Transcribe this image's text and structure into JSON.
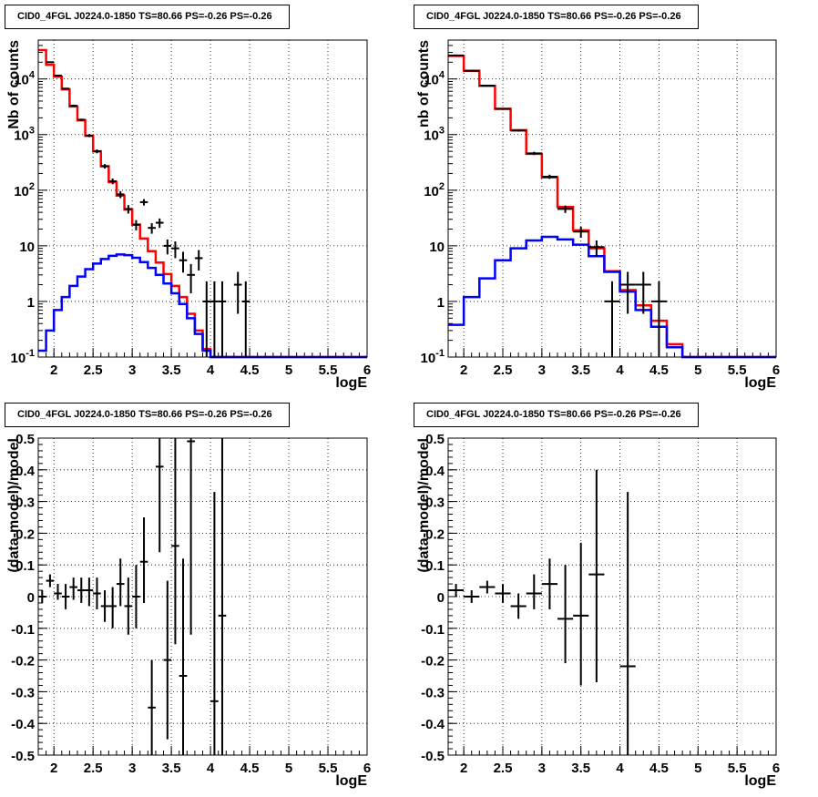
{
  "chart_data": [
    {
      "type": "line",
      "panel": "top-left",
      "title": "CID0_4FGL J0224.0-1850 TS=80.66 PS=-0.26 PS=-0.26",
      "xlabel": "logE",
      "ylabel": "Nb of counts",
      "xlim": [
        1.8,
        6.0
      ],
      "ylim": [
        0.1,
        50000
      ],
      "yscale": "log",
      "grid": true,
      "x_ticks": [
        "2",
        "2.5",
        "3",
        "3.5",
        "4",
        "4.5",
        "5",
        "5.5",
        "6"
      ],
      "y_ticks": [
        "10^-1",
        "1",
        "10",
        "10^2",
        "10^3",
        "10^4"
      ],
      "bin_edges": [
        1.8,
        1.9,
        2.0,
        2.1,
        2.2,
        2.3,
        2.4,
        2.5,
        2.6,
        2.7,
        2.8,
        2.9,
        3.0,
        3.1,
        3.2,
        3.3,
        3.4,
        3.5,
        3.6,
        3.7,
        3.8,
        3.9,
        4.0,
        4.1,
        4.2,
        4.3,
        4.4,
        4.5,
        4.6,
        4.7,
        4.8,
        4.9,
        5.0,
        5.1,
        5.2,
        5.3,
        5.4,
        5.5,
        5.6,
        5.7,
        5.8,
        5.9,
        6.0
      ],
      "series": [
        {
          "name": "",
          "color": "#ff0000",
          "values": [
            33000,
            18000,
            11000,
            6500,
            3200,
            1800,
            950,
            500,
            270,
            140,
            80,
            45,
            24,
            13.5,
            8,
            5,
            3.1,
            1.9,
            1.2,
            0.6,
            0.3,
            0.14,
            0.1,
            0.1,
            0.1,
            0.1,
            0.1,
            0.1,
            0.1,
            0.1,
            0.1,
            0.1,
            0.1,
            0.1,
            0.1,
            0.1,
            0.1,
            0.1,
            0.1,
            0.1,
            0.1,
            0.1
          ]
        },
        {
          "name": "",
          "color": "#0000ff",
          "values": [
            0.13,
            0.3,
            0.7,
            1.2,
            1.9,
            2.8,
            3.8,
            4.8,
            5.8,
            6.6,
            7,
            6.8,
            6.1,
            5.1,
            4,
            3,
            2.1,
            1.4,
            0.9,
            0.5,
            0.26,
            0.13,
            0.1,
            0.1,
            0.1,
            0.1,
            0.1,
            0.1,
            0.1,
            0.1,
            0.1,
            0.1,
            0.1,
            0.1,
            0.1,
            0.1,
            0.1,
            0.1,
            0.1,
            0.1,
            0.1,
            0.1
          ]
        }
      ],
      "points": [
        {
          "x": 1.95,
          "y": 20000,
          "ylo": 19500,
          "yhi": 20500
        },
        {
          "x": 2.05,
          "y": 11500,
          "ylo": 11200,
          "yhi": 11800
        },
        {
          "x": 2.15,
          "y": 6700,
          "ylo": 6500,
          "yhi": 6900
        },
        {
          "x": 2.25,
          "y": 3300,
          "ylo": 3150,
          "yhi": 3450
        },
        {
          "x": 2.35,
          "y": 1850,
          "ylo": 1770,
          "yhi": 1930
        },
        {
          "x": 2.45,
          "y": 960,
          "ylo": 900,
          "yhi": 1020
        },
        {
          "x": 2.55,
          "y": 500,
          "ylo": 460,
          "yhi": 540
        },
        {
          "x": 2.65,
          "y": 270,
          "ylo": 245,
          "yhi": 295
        },
        {
          "x": 2.75,
          "y": 145,
          "ylo": 128,
          "yhi": 162
        },
        {
          "x": 2.85,
          "y": 84,
          "ylo": 72,
          "yhi": 96
        },
        {
          "x": 2.95,
          "y": 46,
          "ylo": 38,
          "yhi": 54
        },
        {
          "x": 3.05,
          "y": 24,
          "ylo": 19,
          "yhi": 29
        },
        {
          "x": 3.15,
          "y": 61,
          "ylo": 53,
          "yhi": 69
        },
        {
          "x": 3.25,
          "y": 21,
          "ylo": 16.5,
          "yhi": 25.5
        },
        {
          "x": 3.35,
          "y": 26,
          "ylo": 21,
          "yhi": 31
        },
        {
          "x": 3.45,
          "y": 10,
          "ylo": 7,
          "yhi": 13
        },
        {
          "x": 3.55,
          "y": 9,
          "ylo": 6,
          "yhi": 12
        },
        {
          "x": 3.65,
          "y": 5.5,
          "ylo": 3.3,
          "yhi": 7.8
        },
        {
          "x": 3.75,
          "y": 3,
          "ylo": 1.4,
          "yhi": 4.7
        },
        {
          "x": 3.85,
          "y": 6,
          "ylo": 3.6,
          "yhi": 8.4
        },
        {
          "x": 3.95,
          "y": 1,
          "ylo": 0.1,
          "yhi": 2.3
        },
        {
          "x": 4.05,
          "y": 1,
          "ylo": 0.1,
          "yhi": 2.3
        },
        {
          "x": 4.15,
          "y": 1,
          "ylo": 0.1,
          "yhi": 2.3
        },
        {
          "x": 4.35,
          "y": 2,
          "ylo": 0.6,
          "yhi": 3.4
        },
        {
          "x": 4.45,
          "y": 1,
          "ylo": 0.1,
          "yhi": 2.3
        }
      ]
    },
    {
      "type": "line",
      "panel": "top-right",
      "title": "CID0_4FGL J0224.0-1850 TS=80.66 PS=-0.26 PS=-0.26",
      "xlabel": "logE",
      "ylabel": "nb of counts",
      "xlim": [
        1.8,
        6.0
      ],
      "ylim": [
        0.1,
        50000
      ],
      "yscale": "log",
      "grid": true,
      "x_ticks": [
        "2",
        "2.5",
        "3",
        "3.5",
        "4",
        "4.5",
        "5",
        "5.5",
        "6"
      ],
      "y_ticks": [
        "10^-1",
        "1",
        "10",
        "10^2",
        "10^3",
        "10^4"
      ],
      "bin_edges": [
        1.8,
        2.0,
        2.2,
        2.4,
        2.6,
        2.8,
        3.0,
        3.2,
        3.4,
        3.6,
        3.8,
        4.0,
        4.2,
        4.4,
        4.6,
        4.8,
        5.0,
        5.2,
        5.4,
        5.6,
        5.8,
        6.0
      ],
      "series": [
        {
          "name": "",
          "color": "#ff0000",
          "values": [
            26000,
            14000,
            7500,
            2900,
            1200,
            450,
            170,
            50,
            19,
            9,
            3.5,
            1.6,
            0.85,
            0.45,
            0.17,
            0.1,
            0.1,
            0.1,
            0.1,
            0.1,
            0.1
          ]
        },
        {
          "name": "",
          "color": "#0000ff",
          "values": [
            0.38,
            1.2,
            2.6,
            5.5,
            9,
            12.5,
            14.5,
            13,
            10.5,
            6.5,
            3.4,
            1.5,
            0.7,
            0.35,
            0.15,
            0.1,
            0.1,
            0.1,
            0.1,
            0.1,
            0.1
          ]
        }
      ],
      "points": [
        {
          "x": 1.9,
          "y": 26500,
          "ylo": 26200,
          "yhi": 26800
        },
        {
          "x": 2.1,
          "y": 14100,
          "ylo": 13900,
          "yhi": 14300
        },
        {
          "x": 2.3,
          "y": 7600,
          "ylo": 7450,
          "yhi": 7750
        },
        {
          "x": 2.5,
          "y": 2900,
          "ylo": 2800,
          "yhi": 3000
        },
        {
          "x": 2.7,
          "y": 1180,
          "ylo": 1130,
          "yhi": 1230
        },
        {
          "x": 2.9,
          "y": 460,
          "ylo": 430,
          "yhi": 490
        },
        {
          "x": 3.1,
          "y": 175,
          "ylo": 160,
          "yhi": 190
        },
        {
          "x": 3.3,
          "y": 46,
          "ylo": 39,
          "yhi": 53
        },
        {
          "x": 3.5,
          "y": 18,
          "ylo": 14,
          "yhi": 22
        },
        {
          "x": 3.7,
          "y": 9.5,
          "ylo": 6.5,
          "yhi": 12.5
        },
        {
          "x": 3.9,
          "y": 1,
          "ylo": 0.1,
          "yhi": 2.3
        },
        {
          "x": 4.1,
          "y": 2,
          "ylo": 0.6,
          "yhi": 3.4
        },
        {
          "x": 4.3,
          "y": 2,
          "ylo": 0.6,
          "yhi": 3.4
        },
        {
          "x": 4.5,
          "y": 1,
          "ylo": 0.1,
          "yhi": 2.3
        }
      ]
    },
    {
      "type": "scatter",
      "panel": "bottom-left",
      "title": "CID0_4FGL J0224.0-1850 TS=80.66 PS=-0.26 PS=-0.26",
      "xlabel": "logE",
      "ylabel": "(data-model)/model",
      "xlim": [
        1.8,
        6.0
      ],
      "ylim": [
        -0.5,
        0.5
      ],
      "grid": true,
      "x_ticks": [
        "2",
        "2.5",
        "3",
        "3.5",
        "4",
        "4.5",
        "5",
        "5.5",
        "6"
      ],
      "y_ticks": [
        "-0.5",
        "-0.4",
        "-0.3",
        "-0.2",
        "-0.1",
        "0",
        "0.1",
        "0.2",
        "0.3",
        "0.4",
        "0.5"
      ],
      "points": [
        {
          "x": 1.85,
          "y": 0.0,
          "ylo": -0.02,
          "yhi": 0.02,
          "dx": 0.05
        },
        {
          "x": 1.95,
          "y": 0.05,
          "ylo": 0.03,
          "yhi": 0.07,
          "dx": 0.05
        },
        {
          "x": 2.05,
          "y": 0.01,
          "ylo": -0.01,
          "yhi": 0.04,
          "dx": 0.05
        },
        {
          "x": 2.15,
          "y": 0.0,
          "ylo": -0.04,
          "yhi": 0.04,
          "dx": 0.05
        },
        {
          "x": 2.25,
          "y": 0.03,
          "ylo": -0.01,
          "yhi": 0.06,
          "dx": 0.05
        },
        {
          "x": 2.35,
          "y": 0.02,
          "ylo": -0.02,
          "yhi": 0.06,
          "dx": 0.05
        },
        {
          "x": 2.45,
          "y": 0.02,
          "ylo": -0.03,
          "yhi": 0.06,
          "dx": 0.05
        },
        {
          "x": 2.55,
          "y": 0.01,
          "ylo": -0.04,
          "yhi": 0.06,
          "dx": 0.05
        },
        {
          "x": 2.65,
          "y": -0.03,
          "ylo": -0.08,
          "yhi": 0.02,
          "dx": 0.05
        },
        {
          "x": 2.75,
          "y": -0.03,
          "ylo": -0.1,
          "yhi": 0.03,
          "dx": 0.05
        },
        {
          "x": 2.85,
          "y": 0.04,
          "ylo": -0.03,
          "yhi": 0.12,
          "dx": 0.05
        },
        {
          "x": 2.95,
          "y": -0.03,
          "ylo": -0.12,
          "yhi": 0.06,
          "dx": 0.05
        },
        {
          "x": 3.05,
          "y": 0.0,
          "ylo": -0.1,
          "yhi": 0.1,
          "dx": 0.05
        },
        {
          "x": 3.15,
          "y": 0.11,
          "ylo": -0.02,
          "yhi": 0.25,
          "dx": 0.05
        },
        {
          "x": 3.25,
          "y": -0.35,
          "ylo": -0.5,
          "yhi": -0.2,
          "dx": 0.05
        },
        {
          "x": 3.35,
          "y": 0.41,
          "ylo": 0.14,
          "yhi": 0.5,
          "dx": 0.05
        },
        {
          "x": 3.45,
          "y": -0.2,
          "ylo": -0.45,
          "yhi": 0.05,
          "dx": 0.05
        },
        {
          "x": 3.55,
          "y": 0.16,
          "ylo": -0.15,
          "yhi": 0.5,
          "dx": 0.05
        },
        {
          "x": 3.65,
          "y": -0.25,
          "ylo": -0.5,
          "yhi": 0.12,
          "dx": 0.05
        },
        {
          "x": 3.75,
          "y": 0.49,
          "ylo": -0.12,
          "yhi": 0.5,
          "dx": 0.05
        },
        {
          "x": 4.05,
          "y": -0.33,
          "ylo": -0.5,
          "yhi": 0.33,
          "dx": 0.05
        },
        {
          "x": 4.15,
          "y": -0.06,
          "ylo": -0.5,
          "yhi": 0.5,
          "dx": 0.05
        }
      ]
    },
    {
      "type": "scatter",
      "panel": "bottom-right",
      "title": "CID0_4FGL J0224.0-1850 TS=80.66 PS=-0.26 PS=-0.26",
      "xlabel": "logE",
      "ylabel": "(data-model)/model",
      "xlim": [
        1.8,
        6.0
      ],
      "ylim": [
        -0.5,
        0.5
      ],
      "grid": true,
      "x_ticks": [
        "2",
        "2.5",
        "3",
        "3.5",
        "4",
        "4.5",
        "5",
        "5.5",
        "6"
      ],
      "y_ticks": [
        "-0.5",
        "-0.4",
        "-0.3",
        "-0.2",
        "-0.1",
        "0",
        "0.1",
        "0.2",
        "0.3",
        "0.4",
        "0.5"
      ],
      "points": [
        {
          "x": 1.9,
          "y": 0.02,
          "ylo": 0.0,
          "yhi": 0.04,
          "dx": 0.1
        },
        {
          "x": 2.1,
          "y": 0.0,
          "ylo": -0.02,
          "yhi": 0.02,
          "dx": 0.1
        },
        {
          "x": 2.3,
          "y": 0.03,
          "ylo": 0.01,
          "yhi": 0.05,
          "dx": 0.1
        },
        {
          "x": 2.5,
          "y": 0.01,
          "ylo": -0.02,
          "yhi": 0.04,
          "dx": 0.1
        },
        {
          "x": 2.7,
          "y": -0.03,
          "ylo": -0.07,
          "yhi": 0.01,
          "dx": 0.1
        },
        {
          "x": 2.9,
          "y": 0.01,
          "ylo": -0.04,
          "yhi": 0.07,
          "dx": 0.1
        },
        {
          "x": 3.1,
          "y": 0.04,
          "ylo": -0.04,
          "yhi": 0.12,
          "dx": 0.1
        },
        {
          "x": 3.3,
          "y": -0.07,
          "ylo": -0.21,
          "yhi": 0.1,
          "dx": 0.1
        },
        {
          "x": 3.5,
          "y": -0.06,
          "ylo": -0.28,
          "yhi": 0.17,
          "dx": 0.1
        },
        {
          "x": 3.7,
          "y": 0.07,
          "ylo": -0.27,
          "yhi": 0.4,
          "dx": 0.1
        },
        {
          "x": 4.1,
          "y": -0.22,
          "ylo": -0.5,
          "yhi": 0.33,
          "dx": 0.1
        }
      ]
    }
  ]
}
